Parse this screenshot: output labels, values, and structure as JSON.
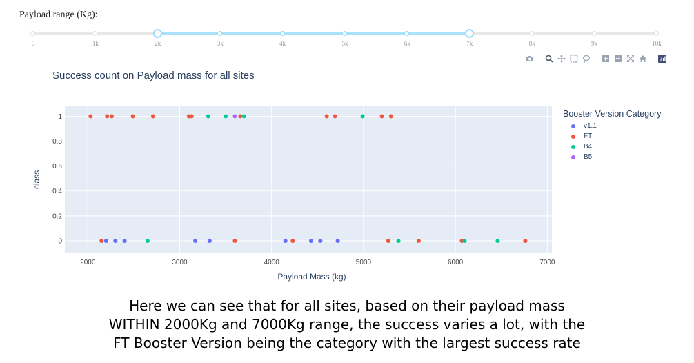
{
  "slider": {
    "label": "Payload range (Kg):",
    "min": 0,
    "max": 10000,
    "selected": [
      2000,
      7000
    ],
    "marks": [
      "0",
      "1k",
      "2k",
      "3k",
      "4k",
      "5k",
      "6k",
      "7k",
      "8k",
      "9k",
      "10k"
    ]
  },
  "modebar": {
    "icons": [
      "camera-icon",
      "zoom-icon",
      "pan-icon",
      "box-select-icon",
      "lasso-icon",
      "zoom-in-icon",
      "zoom-out-icon",
      "autoscale-icon",
      "reset-axes-icon",
      "plotly-logo-icon"
    ]
  },
  "chart_data": {
    "type": "scatter",
    "title": "Success count on Payload mass for all sites",
    "xlabel": "Payload Mass (kg)",
    "ylabel": "class",
    "xlim": [
      1750,
      7050
    ],
    "ylim": [
      -0.1,
      1.08
    ],
    "xticks": [
      2000,
      3000,
      4000,
      5000,
      6000,
      7000
    ],
    "yticks": [
      0,
      0.2,
      0.4,
      0.6,
      0.8,
      1
    ],
    "grid": true,
    "legend_title": "Booster Version Category",
    "legend_position": "right",
    "series": [
      {
        "name": "v1.1",
        "color": "#636efa",
        "points": [
          [
            2200,
            0
          ],
          [
            2300,
            0
          ],
          [
            2400,
            0
          ],
          [
            3170,
            0
          ],
          [
            3325,
            0
          ],
          [
            4150,
            0
          ],
          [
            4430,
            0
          ],
          [
            4530,
            0
          ],
          [
            4720,
            0
          ]
        ]
      },
      {
        "name": "FT",
        "color": "#ef553b",
        "points": [
          [
            2030,
            1
          ],
          [
            2210,
            1
          ],
          [
            2260,
            1
          ],
          [
            2490,
            1
          ],
          [
            2710,
            1
          ],
          [
            3100,
            1
          ],
          [
            3130,
            1
          ],
          [
            3660,
            1
          ],
          [
            4600,
            1
          ],
          [
            4690,
            1
          ],
          [
            5200,
            1
          ],
          [
            5300,
            1
          ],
          [
            2150,
            0
          ],
          [
            3600,
            0
          ],
          [
            4230,
            0
          ],
          [
            5270,
            0
          ],
          [
            5600,
            0
          ],
          [
            6070,
            0
          ],
          [
            6760,
            0
          ]
        ]
      },
      {
        "name": "B4",
        "color": "#00cc96",
        "points": [
          [
            3310,
            1
          ],
          [
            3500,
            1
          ],
          [
            3700,
            1
          ],
          [
            4990,
            1
          ],
          [
            2650,
            0
          ],
          [
            5380,
            0
          ],
          [
            6100,
            0
          ],
          [
            6460,
            0
          ]
        ]
      },
      {
        "name": "B5",
        "color": "#ab63fa",
        "points": [
          [
            3600,
            1
          ]
        ]
      }
    ]
  },
  "caption": {
    "line1": "Here we can see that for all sites, based on their payload mass",
    "line2": "WITHIN 2000Kg and 7000Kg range, the success varies a lot, with the",
    "line3": "FT Booster Version being the category with the largest success rate"
  }
}
